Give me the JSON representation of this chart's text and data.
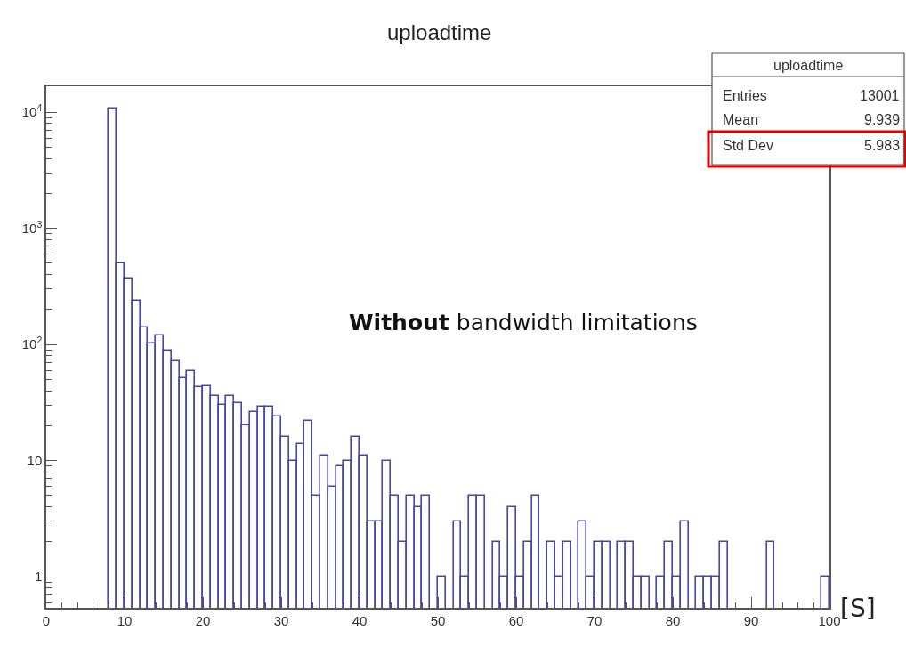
{
  "chart_data": {
    "type": "histogram",
    "title": "uploadtime",
    "xlabel": "[S]",
    "bins": [
      0,
      1,
      2,
      3,
      4,
      5,
      6,
      7,
      8,
      9,
      10,
      11,
      12,
      13,
      14,
      15,
      16,
      17,
      18,
      19,
      20,
      21,
      22,
      23,
      24,
      25,
      26,
      27,
      28,
      29,
      30,
      31,
      32,
      33,
      34,
      35,
      36,
      37,
      38,
      39,
      40,
      41,
      42,
      43,
      44,
      45,
      46,
      47,
      48,
      49,
      50,
      51,
      52,
      53,
      54,
      55,
      56,
      57,
      58,
      59,
      60,
      61,
      62,
      63,
      64,
      65,
      66,
      67,
      68,
      69,
      70,
      71,
      72,
      73,
      74,
      75,
      76,
      77,
      78,
      79,
      80,
      81,
      82,
      83,
      84,
      85,
      86,
      87,
      88,
      89,
      90,
      91,
      92,
      93,
      94,
      95,
      96,
      97,
      98,
      99,
      100
    ],
    "values": [
      null,
      null,
      null,
      null,
      null,
      null,
      null,
      null,
      10700,
      500,
      367,
      239,
      141,
      102,
      120,
      89,
      71,
      51,
      59,
      43,
      44,
      36,
      30,
      36,
      31,
      20,
      26,
      29,
      29,
      24,
      16,
      10,
      14,
      22,
      5,
      11,
      6,
      9,
      10,
      16,
      11,
      3,
      3,
      10,
      5,
      2,
      5,
      4,
      5,
      null,
      1,
      null,
      3,
      1,
      5,
      5,
      null,
      2,
      1,
      4,
      1,
      2,
      5,
      null,
      2,
      1,
      2,
      null,
      3,
      1,
      2,
      2,
      null,
      2,
      2,
      1,
      1,
      null,
      1,
      2,
      1,
      3,
      null,
      1,
      1,
      1,
      2,
      null,
      null,
      null,
      null,
      null,
      2,
      null,
      null,
      null,
      null,
      null,
      null,
      1
    ],
    "color": "#4646a6",
    "log": "y",
    "xlim": [
      0,
      100
    ],
    "xticks": [
      0,
      10,
      20,
      30,
      40,
      50,
      60,
      70,
      80,
      90,
      100
    ],
    "ylim": [
      0.54,
      16700
    ],
    "yticks": [
      1,
      10,
      {
        "value": 100,
        "label": "10$^{2}$"
      },
      {
        "value": 1000,
        "label": "10$^{3}$"
      },
      {
        "value": 10000,
        "label": "10$^{4}$"
      }
    ],
    "legend": false,
    "annotations": [
      "uploadtime",
      "Entries",
      "13001",
      "Mean",
      "9.939",
      "Std Dev",
      "5.983",
      "Without bandwidth limitations"
    ]
  }
}
